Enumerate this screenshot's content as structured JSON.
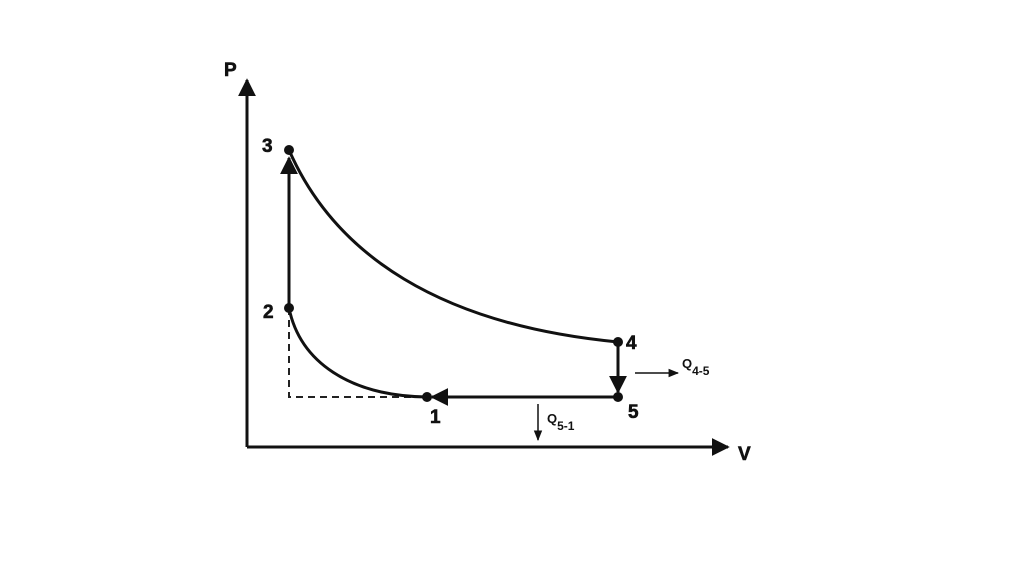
{
  "axes": {
    "y_label": "P",
    "x_label": "V"
  },
  "nodes": [
    {
      "label": "1"
    },
    {
      "label": "2"
    },
    {
      "label": "3"
    },
    {
      "label": "4"
    },
    {
      "label": "5"
    }
  ],
  "heat": [
    {
      "symbol": "Q",
      "subscript": "4-5"
    },
    {
      "symbol": "Q",
      "subscript": "5-1"
    }
  ]
}
